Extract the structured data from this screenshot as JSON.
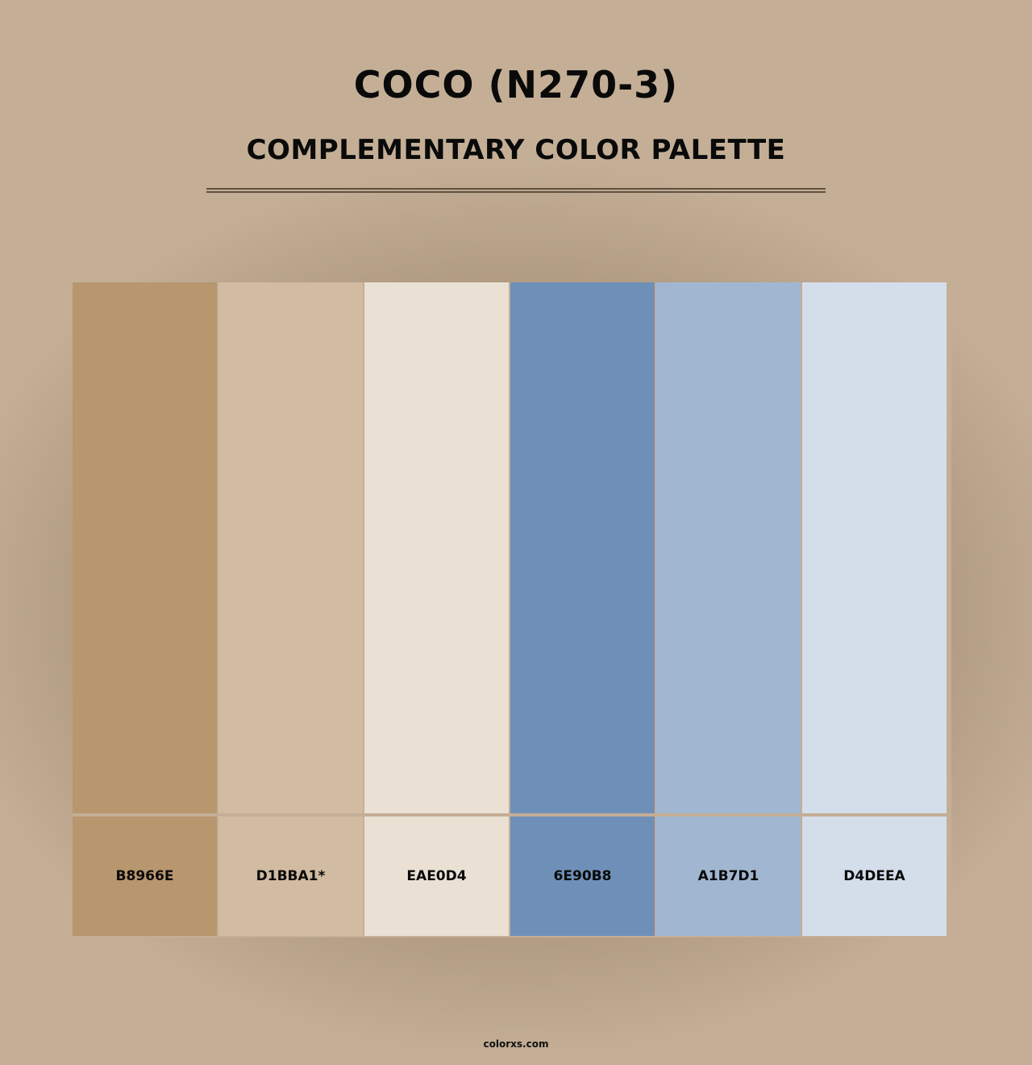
{
  "title": "COCO (N270-3)",
  "subtitle": "COMPLEMENTARY COLOR PALETTE",
  "swatches": [
    {
      "hex": "B8966E",
      "color": "#b8966e"
    },
    {
      "hex": "D1BBA1*",
      "color": "#d1bba1"
    },
    {
      "hex": "EAE0D4",
      "color": "#eae0d4"
    },
    {
      "hex": "6E90B8",
      "color": "#6e90b8"
    },
    {
      "hex": "A1B7D1",
      "color": "#a1b7d1"
    },
    {
      "hex": "D4DEEA",
      "color": "#d4deea"
    }
  ],
  "footer": "colorxs.com"
}
